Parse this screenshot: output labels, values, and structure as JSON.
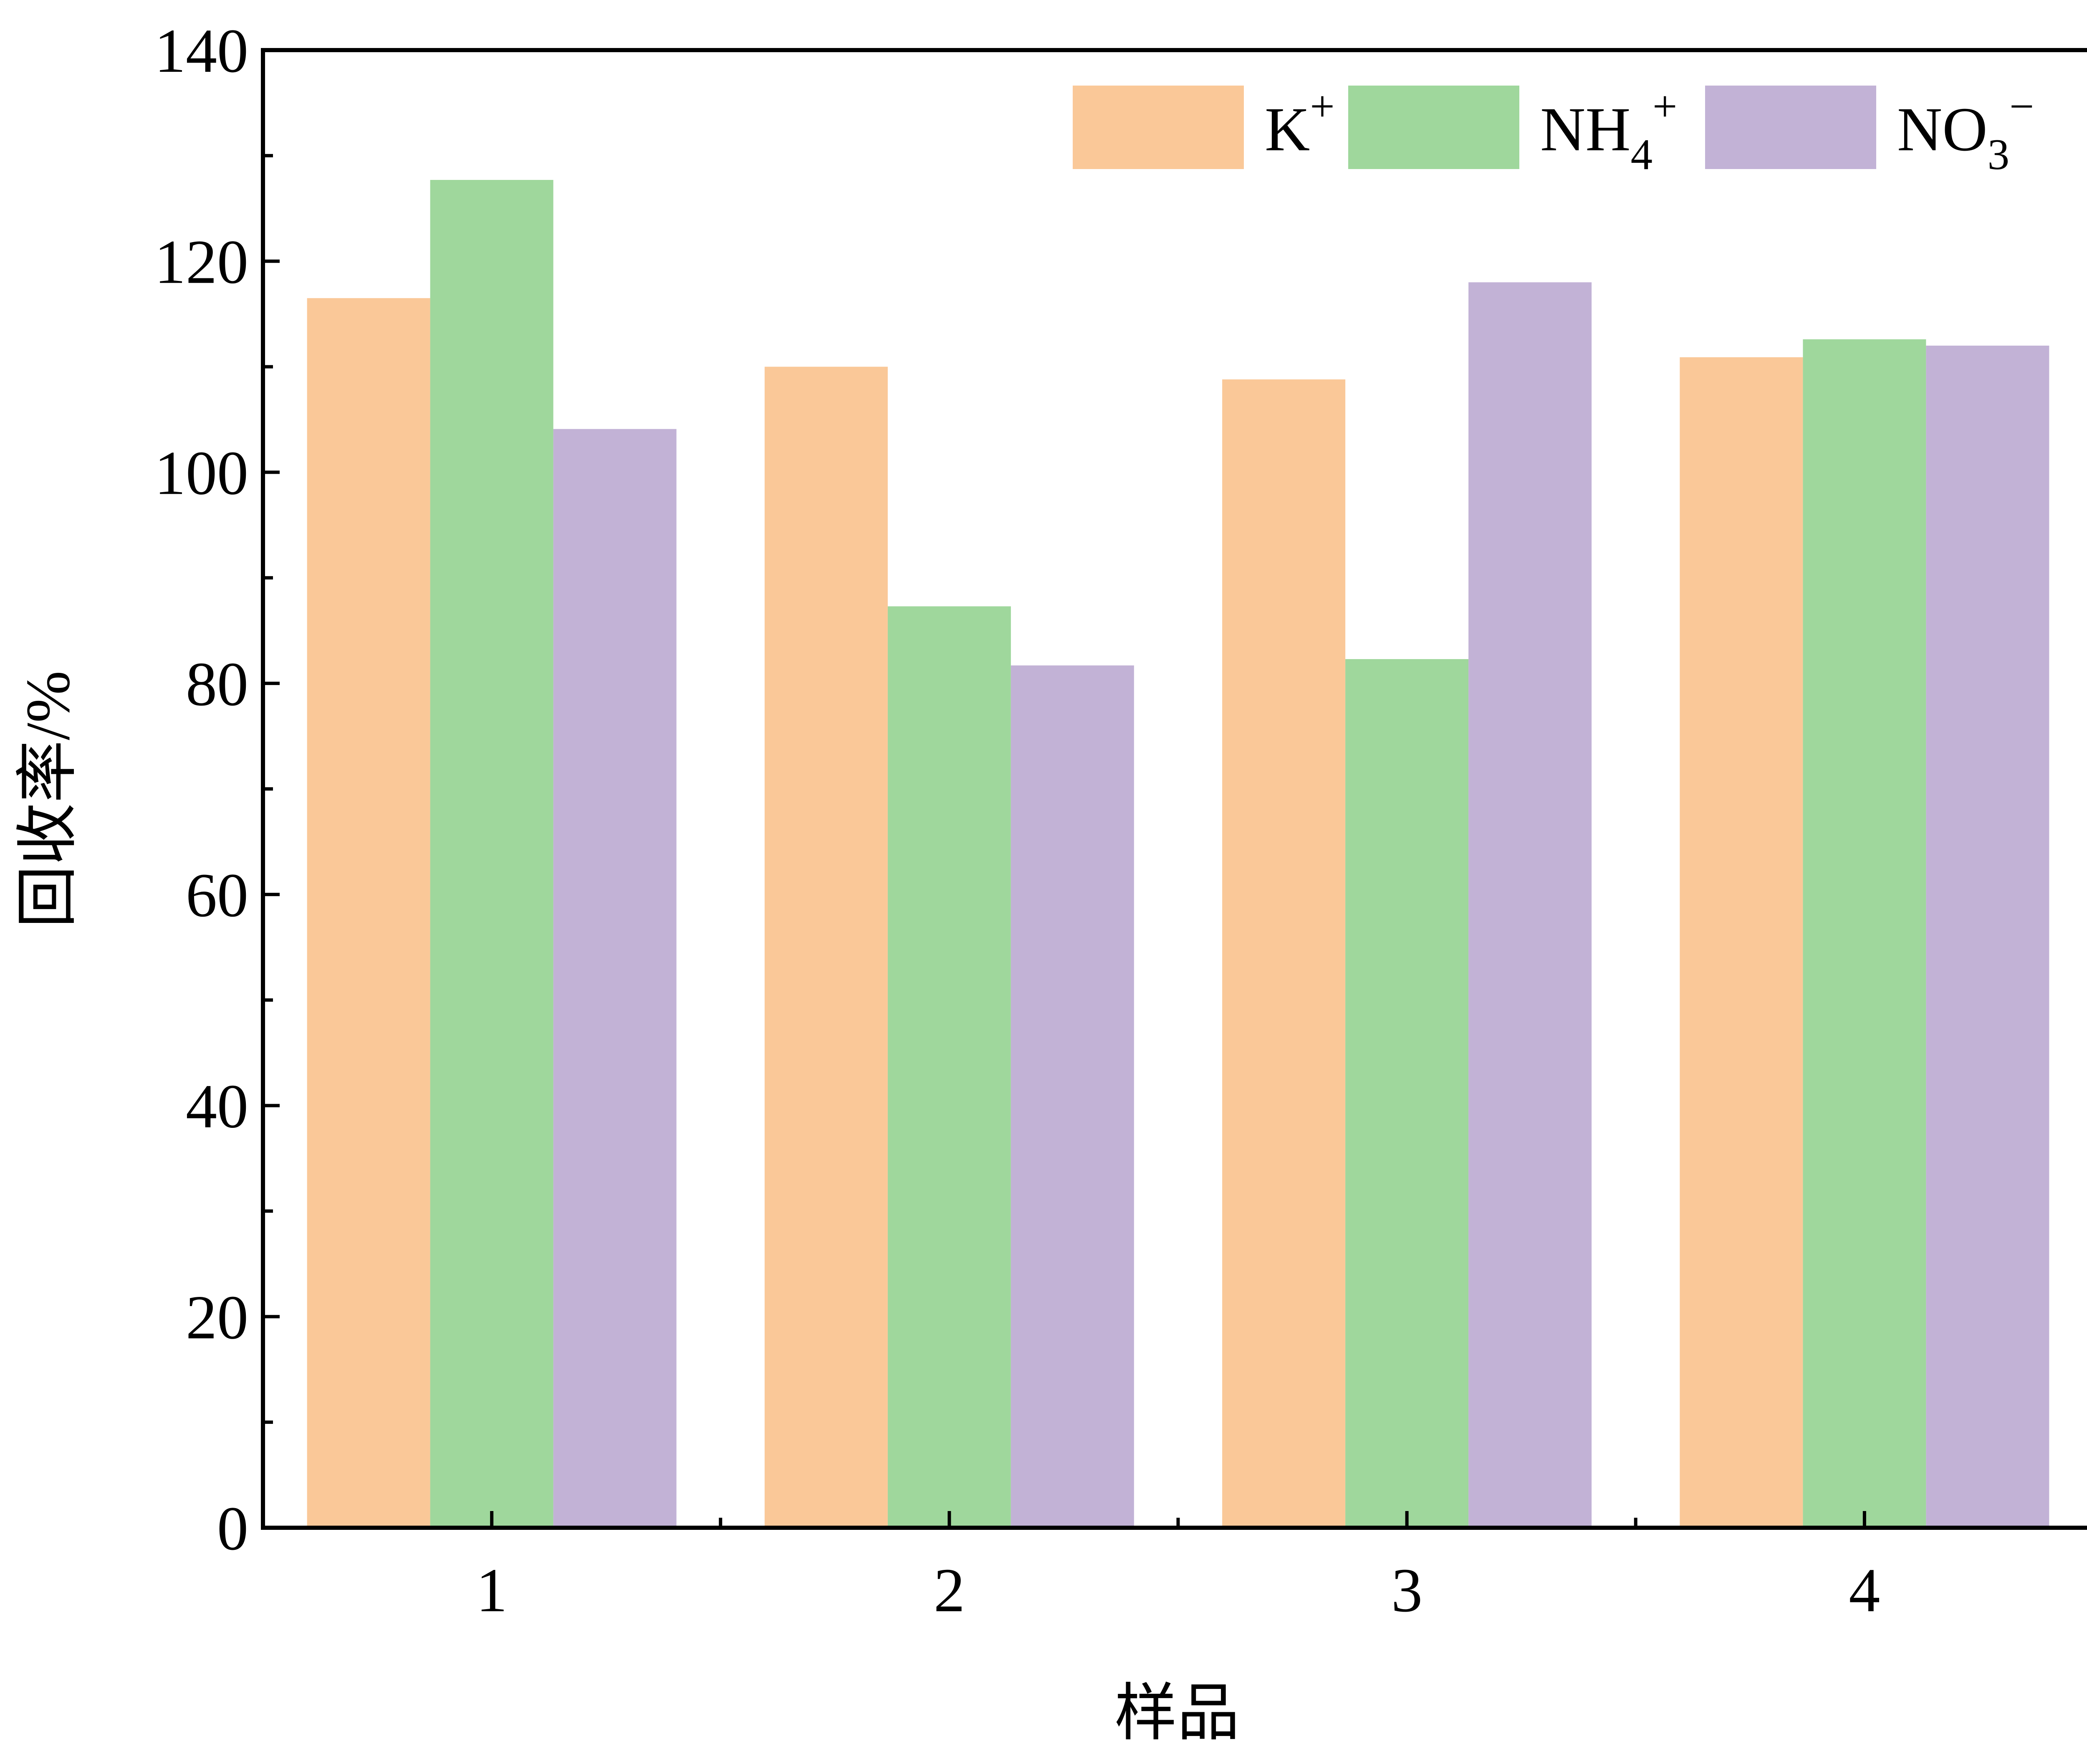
{
  "chart_data": {
    "type": "bar",
    "xlabel": "样品",
    "ylabel": "回收率/%",
    "categories": [
      "1",
      "2",
      "3",
      "4"
    ],
    "ylim": [
      0,
      140
    ],
    "yticks": [
      0,
      20,
      40,
      60,
      80,
      100,
      120,
      140
    ],
    "grid": false,
    "legend_position": "top-right",
    "series": [
      {
        "name": "K+",
        "label_base": "K",
        "label_sub": "",
        "label_sup": "+",
        "color": "#FAC898",
        "values": [
          116.5,
          110.0,
          108.8,
          110.9
        ]
      },
      {
        "name": "NH4+",
        "label_base": "NH",
        "label_sub": "4",
        "label_sup": "+",
        "color": "#9FD79C",
        "values": [
          127.7,
          87.3,
          82.3,
          112.6
        ]
      },
      {
        "name": "NO3−",
        "label_base": "NO",
        "label_sub": "3",
        "label_sup": "−",
        "color": "#C2B2D6",
        "values": [
          104.1,
          81.7,
          118.0,
          112.0
        ]
      }
    ]
  }
}
